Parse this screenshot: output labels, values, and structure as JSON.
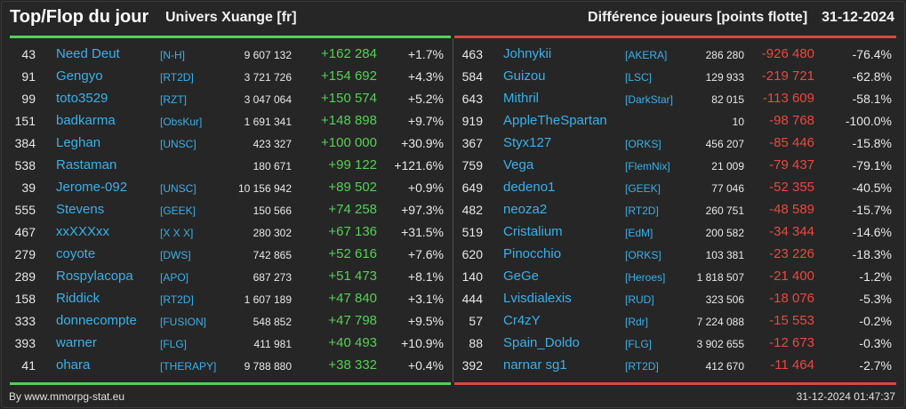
{
  "header": {
    "title": "Top/Flop du jour",
    "subtitle": "Univers Xuange [fr]",
    "metric": "Différence joueurs [points flotte]",
    "date": "31-12-2024"
  },
  "colors": {
    "background": "#262626",
    "gain": "#55d055",
    "loss": "#e64a40",
    "link": "#3ab0ea"
  },
  "top": [
    {
      "rank": "43",
      "name": "Need Deut",
      "tag": "[N-H]",
      "players": "9 607 132",
      "diff": "+162 284",
      "pct": "+1.7%"
    },
    {
      "rank": "91",
      "name": "Gengyo",
      "tag": "[RT2D]",
      "players": "3 721 726",
      "diff": "+154 692",
      "pct": "+4.3%"
    },
    {
      "rank": "99",
      "name": "toto3529",
      "tag": "[RZT]",
      "players": "3 047 064",
      "diff": "+150 574",
      "pct": "+5.2%"
    },
    {
      "rank": "151",
      "name": "badkarma",
      "tag": "[ObsKur]",
      "players": "1 691 341",
      "diff": "+148 898",
      "pct": "+9.7%"
    },
    {
      "rank": "384",
      "name": "Leghan",
      "tag": "[UNSC]",
      "players": "423 327",
      "diff": "+100 000",
      "pct": "+30.9%"
    },
    {
      "rank": "538",
      "name": "Rastaman",
      "tag": "",
      "players": "180 671",
      "diff": "+99 122",
      "pct": "+121.6%"
    },
    {
      "rank": "39",
      "name": "Jerome-092",
      "tag": "[UNSC]",
      "players": "10 156 942",
      "diff": "+89 502",
      "pct": "+0.9%"
    },
    {
      "rank": "555",
      "name": "Stevens",
      "tag": "[GEEK]",
      "players": "150 566",
      "diff": "+74 258",
      "pct": "+97.3%"
    },
    {
      "rank": "467",
      "name": "xxXXXxx",
      "tag": "[X X X]",
      "players": "280 302",
      "diff": "+67 136",
      "pct": "+31.5%"
    },
    {
      "rank": "279",
      "name": "coyote",
      "tag": "[DWS]",
      "players": "742 865",
      "diff": "+52 616",
      "pct": "+7.6%"
    },
    {
      "rank": "289",
      "name": "Rospylacopa",
      "tag": "[APO]",
      "players": "687 273",
      "diff": "+51 473",
      "pct": "+8.1%"
    },
    {
      "rank": "158",
      "name": "Riddick",
      "tag": "[RT2D]",
      "players": "1 607 189",
      "diff": "+47 840",
      "pct": "+3.1%"
    },
    {
      "rank": "333",
      "name": "donnecompte",
      "tag": "[FUSION]",
      "players": "548 852",
      "diff": "+47 798",
      "pct": "+9.5%"
    },
    {
      "rank": "393",
      "name": "warner",
      "tag": "[FLG]",
      "players": "411 981",
      "diff": "+40 493",
      "pct": "+10.9%"
    },
    {
      "rank": "41",
      "name": "ohara",
      "tag": "[THERAPY]",
      "players": "9 788 880",
      "diff": "+38 332",
      "pct": "+0.4%"
    }
  ],
  "flop": [
    {
      "rank": "463",
      "name": "Johnykii",
      "tag": "[AKERA]",
      "players": "286 280",
      "diff": "-926 480",
      "pct": "-76.4%"
    },
    {
      "rank": "584",
      "name": "Guizou",
      "tag": "[LSC]",
      "players": "129 933",
      "diff": "-219 721",
      "pct": "-62.8%"
    },
    {
      "rank": "643",
      "name": "Mithril",
      "tag": "[DarkStar]",
      "players": "82 015",
      "diff": "-113 609",
      "pct": "-58.1%"
    },
    {
      "rank": "919",
      "name": "AppleTheSpartan",
      "tag": "",
      "players": "10",
      "diff": "-98 768",
      "pct": "-100.0%"
    },
    {
      "rank": "367",
      "name": "Styx127",
      "tag": "[ORKS]",
      "players": "456 207",
      "diff": "-85 446",
      "pct": "-15.8%"
    },
    {
      "rank": "759",
      "name": "Vega",
      "tag": "[FlemNix]",
      "players": "21 009",
      "diff": "-79 437",
      "pct": "-79.1%"
    },
    {
      "rank": "649",
      "name": "dedeno1",
      "tag": "[GEEK]",
      "players": "77 046",
      "diff": "-52 355",
      "pct": "-40.5%"
    },
    {
      "rank": "482",
      "name": "neoza2",
      "tag": "[RT2D]",
      "players": "260 751",
      "diff": "-48 589",
      "pct": "-15.7%"
    },
    {
      "rank": "519",
      "name": "Cristalium",
      "tag": "[EdM]",
      "players": "200 582",
      "diff": "-34 344",
      "pct": "-14.6%"
    },
    {
      "rank": "620",
      "name": "Pinocchio",
      "tag": "[ORKS]",
      "players": "103 381",
      "diff": "-23 226",
      "pct": "-18.3%"
    },
    {
      "rank": "140",
      "name": "GeGe",
      "tag": "[Heroes]",
      "players": "1 818 507",
      "diff": "-21 400",
      "pct": "-1.2%"
    },
    {
      "rank": "444",
      "name": "Lvisdialexis",
      "tag": "[RUD]",
      "players": "323 506",
      "diff": "-18 076",
      "pct": "-5.3%"
    },
    {
      "rank": "57",
      "name": "Cr4zY",
      "tag": "[Rdr]",
      "players": "7 224 088",
      "diff": "-15 553",
      "pct": "-0.2%"
    },
    {
      "rank": "88",
      "name": "Spain_Doldo",
      "tag": "[FLG]",
      "players": "3 902 655",
      "diff": "-12 673",
      "pct": "-0.3%"
    },
    {
      "rank": "392",
      "name": "narnar sg1",
      "tag": "[RT2D]",
      "players": "412 670",
      "diff": "-11 464",
      "pct": "-2.7%"
    }
  ],
  "footer": {
    "credit": "By www.mmorpg-stat.eu",
    "timestamp": "31-12-2024 01:47:37"
  }
}
